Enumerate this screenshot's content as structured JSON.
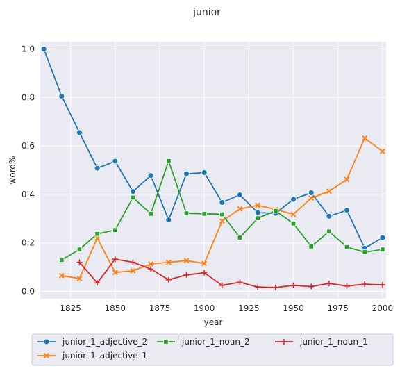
{
  "chart_data": {
    "type": "line",
    "title": "junior",
    "xlabel": "year",
    "ylabel": "word%",
    "xlim": [
      1808,
      2002
    ],
    "ylim": [
      -0.03,
      1.03
    ],
    "xticks": [
      1825,
      1850,
      1875,
      1900,
      1925,
      1950,
      1975,
      2000
    ],
    "yticks": [
      0.0,
      0.2,
      0.4,
      0.6,
      0.8,
      1.0
    ],
    "grid": true,
    "legend_position": "bottom",
    "series": [
      {
        "name": "junior_1_adjective_2",
        "color": "#1f77b4",
        "marker": "circle",
        "x": [
          1810,
          1820,
          1830,
          1840,
          1850,
          1860,
          1870,
          1880,
          1890,
          1900,
          1910,
          1920,
          1930,
          1940,
          1950,
          1960,
          1970,
          1980,
          1990,
          2000
        ],
        "y": [
          1.0,
          0.805,
          0.655,
          0.508,
          0.537,
          0.412,
          0.478,
          0.295,
          0.485,
          0.49,
          0.367,
          0.398,
          0.325,
          0.322,
          0.38,
          0.407,
          0.31,
          0.335,
          0.178,
          0.222
        ]
      },
      {
        "name": "junior_1_adjective_1",
        "color": "#ff7f0e",
        "marker": "x",
        "x": [
          1820,
          1830,
          1840,
          1850,
          1860,
          1870,
          1880,
          1890,
          1900,
          1910,
          1920,
          1930,
          1940,
          1950,
          1960,
          1970,
          1980,
          1990,
          2000
        ],
        "y": [
          0.065,
          0.053,
          0.22,
          0.078,
          0.085,
          0.113,
          0.12,
          0.127,
          0.115,
          0.29,
          0.34,
          0.355,
          0.338,
          0.318,
          0.385,
          0.413,
          0.462,
          0.632,
          0.578
        ]
      },
      {
        "name": "junior_1_noun_2",
        "color": "#2ca02c",
        "marker": "square",
        "x": [
          1820,
          1830,
          1840,
          1850,
          1860,
          1870,
          1880,
          1890,
          1900,
          1910,
          1920,
          1930,
          1940,
          1950,
          1960,
          1970,
          1980,
          1990,
          2000
        ],
        "y": [
          0.13,
          0.173,
          0.237,
          0.253,
          0.387,
          0.32,
          0.538,
          0.322,
          0.32,
          0.318,
          0.222,
          0.302,
          0.332,
          0.28,
          0.185,
          0.247,
          0.183,
          0.162,
          0.173
        ]
      },
      {
        "name": "junior_1_noun_1",
        "color": "#d62728",
        "marker": "plus",
        "x": [
          1830,
          1840,
          1850,
          1860,
          1870,
          1880,
          1890,
          1900,
          1910,
          1920,
          1930,
          1940,
          1950,
          1960,
          1970,
          1980,
          1990,
          2000
        ],
        "y": [
          0.12,
          0.035,
          0.133,
          0.12,
          0.092,
          0.048,
          0.068,
          0.077,
          0.025,
          0.038,
          0.018,
          0.016,
          0.025,
          0.02,
          0.033,
          0.022,
          0.03,
          0.027
        ]
      }
    ]
  }
}
